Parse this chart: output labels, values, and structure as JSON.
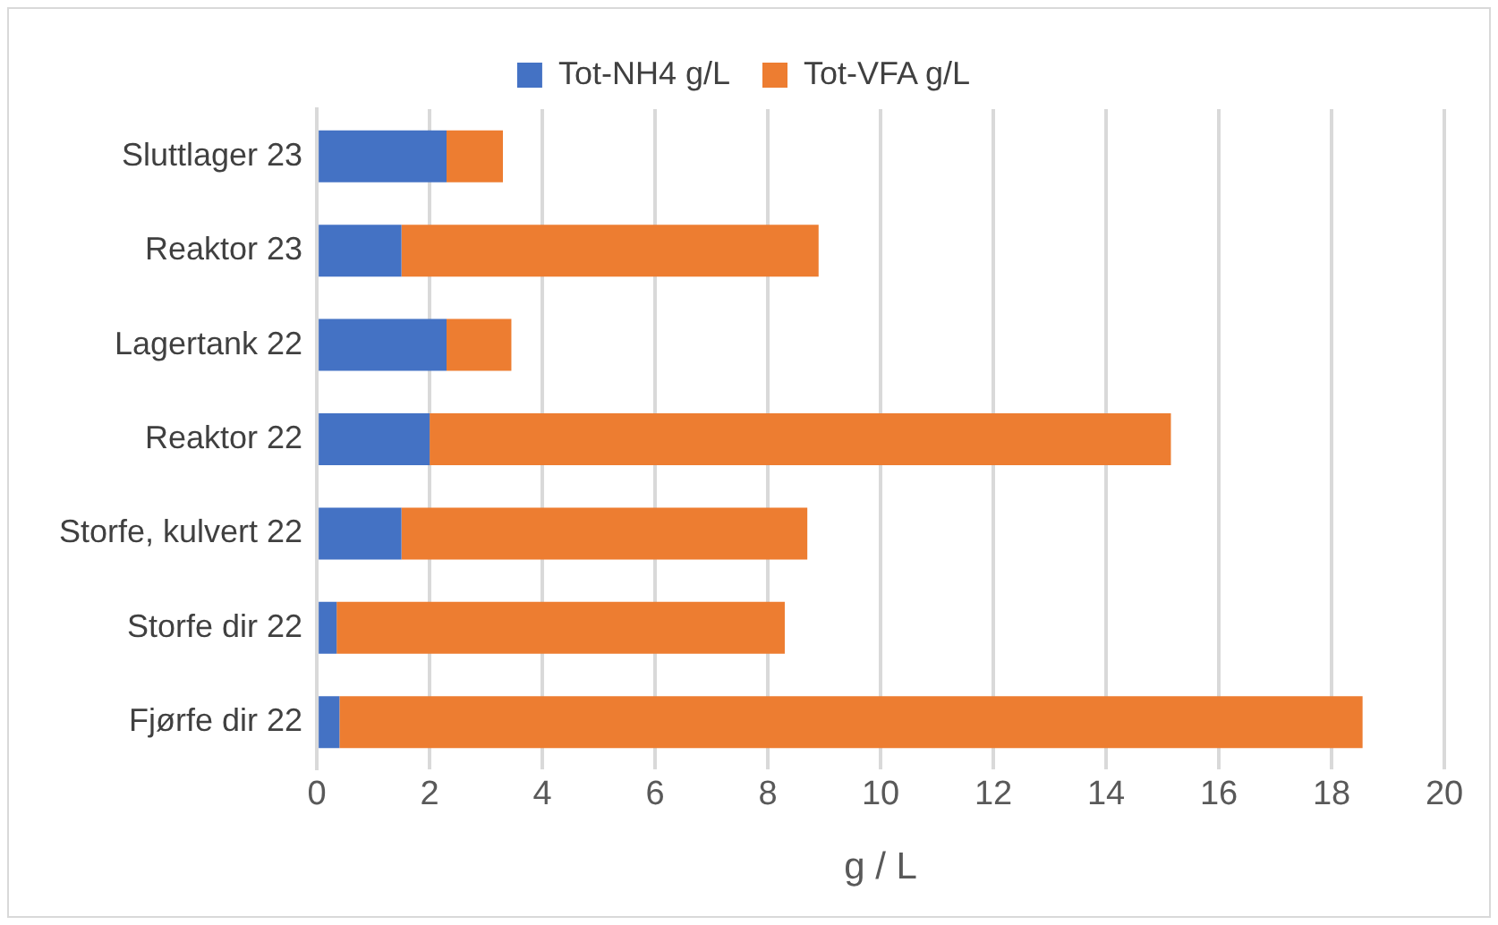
{
  "chart_data": {
    "type": "bar",
    "orientation": "horizontal",
    "stacked": true,
    "xlabel": "g / L",
    "legend": "top",
    "grid": "x",
    "categories": [
      "Sluttlager 23",
      "Reaktor 23",
      "Lagertank 22",
      "Reaktor 22",
      "Storfe, kulvert 22",
      "Storfe dir 22",
      "Fjørfe dir 22"
    ],
    "series": [
      {
        "name": "Tot-NH4 g/L",
        "color": "#4472c4",
        "values": [
          2.3,
          1.5,
          2.3,
          2.0,
          1.5,
          0.35,
          0.4
        ]
      },
      {
        "name": "Tot-VFA g/L",
        "color": "#ed7d31",
        "values": [
          1.0,
          7.4,
          1.15,
          13.15,
          7.2,
          7.95,
          18.15
        ]
      }
    ],
    "xlim": [
      0,
      20
    ],
    "xticks": [
      0,
      2,
      4,
      6,
      8,
      10,
      12,
      14,
      16,
      18,
      20
    ]
  }
}
